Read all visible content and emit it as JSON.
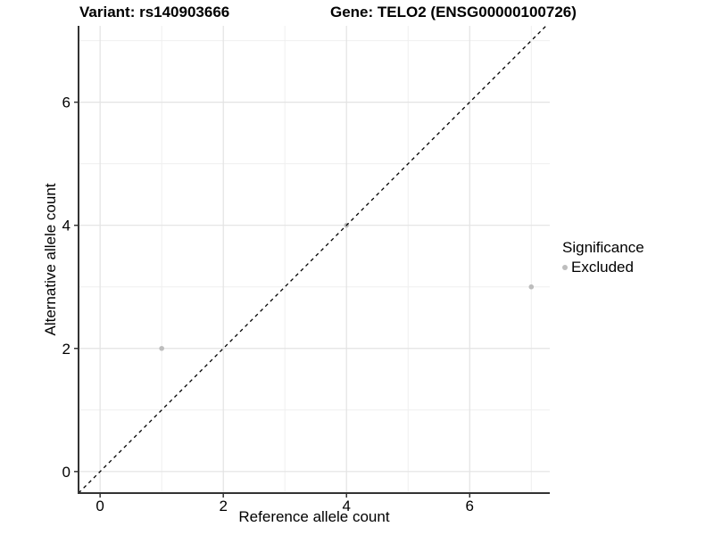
{
  "titles": {
    "left": "Variant: rs140903666",
    "right": "Gene: TELO2 (ENSG00000100726)"
  },
  "chart_data": {
    "type": "scatter",
    "title_left": "Variant: rs140903666",
    "title_right": "Gene: TELO2 (ENSG00000100726)",
    "xlabel": "Reference allele count",
    "ylabel": "Alternative allele count",
    "xlim": [
      -0.35,
      7.3
    ],
    "ylim": [
      -0.35,
      7.24
    ],
    "x_major_ticks": [
      0,
      2,
      4,
      6
    ],
    "y_major_ticks": [
      0,
      2,
      4,
      6
    ],
    "x_minor_gridlines": [
      1,
      3,
      5,
      7
    ],
    "y_minor_gridlines": [
      1,
      3,
      5,
      7
    ],
    "grid": true,
    "points": [
      {
        "x": 1,
        "y": 2,
        "significance": "Excluded"
      },
      {
        "x": 4,
        "y": 4,
        "significance": "Excluded"
      },
      {
        "x": 7,
        "y": 3,
        "significance": "Excluded"
      }
    ],
    "identity_line": {
      "slope": 1,
      "intercept": 0,
      "style": "dashed"
    },
    "legend": {
      "title": "Significance",
      "position": "right",
      "items": [
        {
          "label": "Excluded",
          "color": "#bdbdbd"
        }
      ]
    },
    "colors": {
      "point": "#bdbdbd",
      "identity_line": "#000000",
      "axis_line": "#333333",
      "tick": "#333333",
      "tick_label": "#000000",
      "grid_major": "#e3e3e3",
      "grid_minor": "#efefef",
      "background": "#ffffff"
    }
  }
}
